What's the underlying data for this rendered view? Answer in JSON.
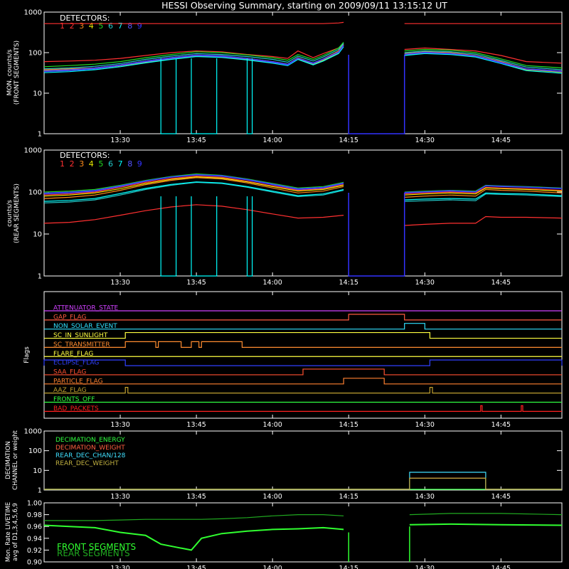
{
  "title": "HESSI Observing Summary, starting on 2009/09/11 13:15:12 UT",
  "detector_colors": [
    "#ff3030",
    "#ff3030",
    "#ff8c1a",
    "#e8e800",
    "#22dd22",
    "#22cccc",
    "#00ffff",
    "#5555ff",
    "#3333ff"
  ],
  "x_ticks": [
    "13:30",
    "13:45",
    "14:00",
    "14:15",
    "14:30",
    "14:45"
  ],
  "chart_data": [
    {
      "type": "line",
      "title": "HESSI Observing Summary, starting on 2009/09/11 13:15:12 UT",
      "ylabel_lines": [
        "MON. counts/s",
        "(FRONT SEGMENTS)"
      ],
      "yscale": "log",
      "ylim": [
        1,
        1000
      ],
      "y_ticks": [
        "1",
        "10",
        "100",
        "1000"
      ],
      "legend_title": "DETECTORS:",
      "legend_items": [
        "1",
        "2",
        "3",
        "4",
        "5",
        "6",
        "7",
        "8",
        "9"
      ],
      "x_range": [
        "13:15",
        "14:57"
      ],
      "data_gap": [
        "14:15",
        "14:26"
      ],
      "x": [
        "13:15",
        "13:20",
        "13:25",
        "13:30",
        "13:35",
        "13:40",
        "13:45",
        "13:50",
        "13:55",
        "14:00",
        "14:03",
        "14:05",
        "14:08",
        "14:10",
        "14:13",
        "14:14",
        "14:26",
        "14:30",
        "14:35",
        "14:40",
        "14:45",
        "14:50",
        "14:57"
      ],
      "series": [
        {
          "name": "1",
          "values": [
            520,
            520,
            520,
            520,
            520,
            520,
            520,
            520,
            520,
            520,
            520,
            520,
            520,
            520,
            540,
            560,
            520,
            520,
            520,
            520,
            520,
            520,
            520
          ]
        },
        {
          "name": "2",
          "values": [
            60,
            62,
            65,
            72,
            85,
            100,
            110,
            105,
            90,
            80,
            72,
            110,
            75,
            95,
            130,
            170,
            120,
            130,
            120,
            110,
            85,
            60,
            55
          ]
        },
        {
          "name": "3",
          "values": [
            38,
            40,
            42,
            50,
            62,
            75,
            88,
            82,
            72,
            60,
            52,
            75,
            55,
            70,
            110,
            160,
            95,
            105,
            100,
            85,
            60,
            40,
            35
          ]
        },
        {
          "name": "4",
          "values": [
            35,
            37,
            40,
            47,
            58,
            70,
            82,
            78,
            68,
            57,
            50,
            70,
            52,
            65,
            100,
            150,
            88,
            98,
            92,
            80,
            55,
            38,
            33
          ]
        },
        {
          "name": "5",
          "values": [
            45,
            48,
            52,
            60,
            75,
            90,
            105,
            100,
            88,
            75,
            65,
            90,
            68,
            85,
            130,
            180,
            110,
            120,
            115,
            100,
            70,
            48,
            42
          ]
        },
        {
          "name": "6",
          "values": [
            40,
            42,
            46,
            54,
            68,
            82,
            95,
            90,
            80,
            68,
            58,
            82,
            62,
            78,
            120,
            170,
            100,
            110,
            106,
            92,
            64,
            44,
            38
          ]
        },
        {
          "name": "7",
          "values": [
            32,
            34,
            38,
            45,
            56,
            68,
            80,
            76,
            66,
            55,
            48,
            68,
            50,
            62,
            95,
            140,
            85,
            95,
            90,
            78,
            54,
            36,
            31
          ]
        },
        {
          "name": "8",
          "values": [
            36,
            38,
            42,
            50,
            62,
            75,
            88,
            84,
            72,
            60,
            52,
            74,
            56,
            70,
            105,
            155,
            92,
            102,
            96,
            84,
            58,
            40,
            35
          ]
        },
        {
          "name": "9",
          "values": [
            34,
            36,
            40,
            48,
            60,
            72,
            85,
            80,
            70,
            58,
            50,
            72,
            54,
            68,
            102,
            150,
            90,
            100,
            94,
            82,
            56,
            39,
            34
          ]
        }
      ]
    },
    {
      "type": "line",
      "ylabel_lines": [
        "counts/s",
        "(REAR SEGMENTS)"
      ],
      "yscale": "log",
      "ylim": [
        1,
        1000
      ],
      "y_ticks": [
        "1",
        "10",
        "100",
        "1000"
      ],
      "legend_title": "DETECTORS:",
      "legend_items": [
        "1",
        "2",
        "3",
        "4",
        "5",
        "6",
        "7",
        "8",
        "9"
      ],
      "x_range": [
        "13:15",
        "14:57"
      ],
      "data_gap": [
        "14:15",
        "14:26"
      ],
      "x": [
        "13:15",
        "13:20",
        "13:25",
        "13:30",
        "13:35",
        "13:40",
        "13:45",
        "13:50",
        "13:55",
        "14:00",
        "14:05",
        "14:10",
        "14:14",
        "14:26",
        "14:30",
        "14:35",
        "14:40",
        "14:42",
        "14:45",
        "14:50",
        "14:57"
      ],
      "series": [
        {
          "name": "1",
          "values": [
            18,
            19,
            22,
            28,
            36,
            44,
            50,
            46,
            38,
            30,
            24,
            25,
            28,
            16,
            17,
            18,
            18,
            26,
            25,
            25,
            24
          ]
        },
        {
          "name": "2",
          "values": [
            85,
            90,
            100,
            130,
            170,
            210,
            240,
            225,
            180,
            140,
            110,
            120,
            150,
            90,
            95,
            100,
            95,
            130,
            125,
            120,
            110
          ]
        },
        {
          "name": "3",
          "values": [
            70,
            75,
            85,
            110,
            150,
            190,
            220,
            205,
            165,
            125,
            95,
            105,
            135,
            75,
            80,
            85,
            80,
            115,
            110,
            105,
            95
          ]
        },
        {
          "name": "4",
          "values": [
            80,
            85,
            95,
            120,
            160,
            200,
            230,
            215,
            175,
            135,
            105,
            115,
            145,
            85,
            90,
            95,
            90,
            125,
            120,
            115,
            105
          ]
        },
        {
          "name": "5",
          "values": [
            100,
            105,
            115,
            145,
            190,
            235,
            270,
            250,
            205,
            160,
            125,
            135,
            170,
            100,
            105,
            110,
            105,
            145,
            140,
            135,
            125
          ]
        },
        {
          "name": "6",
          "values": [
            55,
            58,
            65,
            85,
            115,
            145,
            170,
            160,
            130,
            100,
            78,
            85,
            110,
            60,
            62,
            65,
            62,
            90,
            88,
            85,
            78
          ]
        },
        {
          "name": "7",
          "values": [
            60,
            63,
            70,
            92,
            122,
            152,
            175,
            165,
            135,
            105,
            82,
            90,
            115,
            65,
            68,
            70,
            68,
            95,
            92,
            90,
            82
          ]
        },
        {
          "name": "8",
          "values": [
            90,
            95,
            105,
            135,
            180,
            225,
            255,
            240,
            195,
            150,
            115,
            125,
            160,
            95,
            100,
            105,
            100,
            140,
            135,
            130,
            120
          ]
        },
        {
          "name": "9",
          "values": [
            95,
            100,
            110,
            140,
            185,
            230,
            260,
            245,
            200,
            155,
            120,
            130,
            165,
            98,
            102,
            108,
            102,
            142,
            138,
            132,
            122
          ]
        }
      ]
    },
    {
      "type": "line",
      "ylabel": "Flags",
      "x_range": [
        "13:15",
        "14:57"
      ],
      "series": [
        {
          "name": "ATTENUATOR_STATE",
          "color": "#d040ff",
          "intervals": []
        },
        {
          "name": "GAP_FLAG",
          "color": "#ff5a40",
          "intervals": [
            [
              "14:15",
              "14:26"
            ]
          ]
        },
        {
          "name": "NON_SOLAR_EVENT",
          "color": "#30e0ff",
          "intervals": [
            [
              "14:26",
              "14:30"
            ]
          ]
        },
        {
          "name": "SC_IN_SUNLIGHT",
          "color": "#ffff40",
          "intervals": [
            [
              "13:31",
              "14:31"
            ]
          ]
        },
        {
          "name": "SC_TRANSMITTER",
          "color": "#ff8c30",
          "intervals": [
            [
              "13:31",
              "13:37"
            ],
            [
              "13:37.5",
              "13:42"
            ],
            [
              "13:44",
              "13:45.5"
            ],
            [
              "13:46",
              "13:54"
            ]
          ]
        },
        {
          "name": "FLARE_FLAG",
          "color": "#ffff40",
          "intervals": []
        },
        {
          "name": "ECLIPSE_FLAG",
          "color": "#3040ff",
          "intervals": [
            [
              "13:15",
              "13:31"
            ],
            [
              "14:31",
              "14:57"
            ]
          ]
        },
        {
          "name": "SAA_FLAG",
          "color": "#ff5030",
          "intervals": [
            [
              "14:06",
              "14:22"
            ]
          ]
        },
        {
          "name": "PARTICLE_FLAG",
          "color": "#ff8030",
          "intervals": [
            [
              "14:14",
              "14:22"
            ]
          ]
        },
        {
          "name": "AAZ_FLAG",
          "color": "#c0a030",
          "intervals": [
            [
              "13:31",
              "13:31.5"
            ],
            [
              "14:31",
              "14:31.5"
            ]
          ]
        },
        {
          "name": "FRONTS_OFF",
          "color": "#30ff40",
          "intervals": []
        },
        {
          "name": "BAD_PACKETS",
          "color": "#ff2020",
          "intervals": [
            [
              "14:41",
              "14:41.3"
            ],
            [
              "14:49",
              "14:49.3"
            ]
          ]
        }
      ]
    },
    {
      "type": "line",
      "ylabel_lines": [
        "DECIMATION",
        "CHANNEL or weight"
      ],
      "yscale": "log",
      "ylim": [
        1,
        1000
      ],
      "y_ticks": [
        "1",
        "10",
        "100",
        "1000"
      ],
      "x_range": [
        "13:15",
        "14:57"
      ],
      "series": [
        {
          "name": "DECIMATION_ENERGY",
          "color": "#30ff40",
          "values": [
            1
          ]
        },
        {
          "name": "DECIMATION_WEIGHT",
          "color": "#ff6040",
          "interval": [
            "14:27",
            "14:42"
          ],
          "value": 4
        },
        {
          "name": "REAR_DEC_CHAN/128",
          "color": "#40e0ff",
          "interval": [
            "14:27",
            "14:42"
          ],
          "value": 8
        },
        {
          "name": "REAR_DEC_WEIGHT",
          "color": "#c0b040",
          "interval": [
            "14:27",
            "14:42"
          ],
          "value": 4
        }
      ]
    },
    {
      "type": "line",
      "ylabel_lines": [
        "Mon. Rate LIVETIME",
        "avg of D1,3,4,5,6,9"
      ],
      "ylim": [
        0.9,
        1.0
      ],
      "y_ticks": [
        "0.90",
        "0.92",
        "0.94",
        "0.96",
        "0.98",
        "1.00"
      ],
      "x_range": [
        "13:15",
        "14:57"
      ],
      "data_gap": [
        "14:15",
        "14:27"
      ],
      "x": [
        "13:15",
        "13:20",
        "13:25",
        "13:30",
        "13:35",
        "13:38",
        "13:41",
        "13:44",
        "13:46",
        "13:50",
        "13:55",
        "14:00",
        "14:05",
        "14:10",
        "14:14",
        "14:27",
        "14:35",
        "14:45",
        "14:57"
      ],
      "series": [
        {
          "name": "FRONT SEGMENTS",
          "color": "#30ff30",
          "values": [
            0.962,
            0.96,
            0.958,
            0.95,
            0.945,
            0.93,
            0.925,
            0.92,
            0.94,
            0.948,
            0.952,
            0.955,
            0.956,
            0.958,
            0.955,
            0.963,
            0.964,
            0.963,
            0.962
          ]
        },
        {
          "name": "REAR SEGMENTS",
          "color": "#20aa20",
          "values": [
            0.97,
            0.97,
            0.97,
            0.971,
            0.972,
            0.972,
            0.972,
            0.972,
            0.972,
            0.973,
            0.975,
            0.978,
            0.98,
            0.98,
            0.978,
            0.98,
            0.982,
            0.982,
            0.98
          ]
        }
      ]
    }
  ]
}
